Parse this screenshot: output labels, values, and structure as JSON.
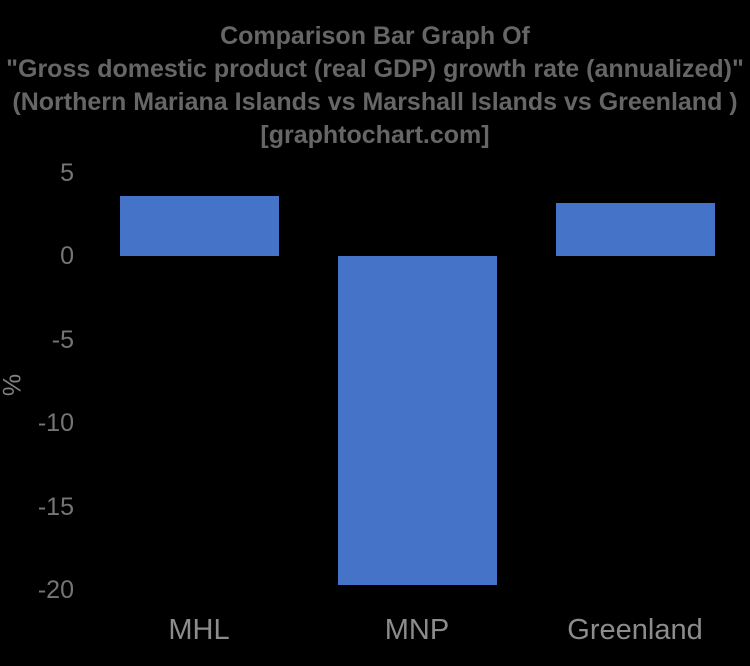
{
  "chart_data": {
    "type": "bar",
    "title_lines": [
      "Comparison Bar Graph Of",
      "\"Gross domestic product (real GDP) growth rate (annualized)\"",
      "(Northern Mariana Islands vs Marshall Islands vs Greenland )",
      "[graphtochart.com]"
    ],
    "categories": [
      "MHL",
      "MNP",
      "Greenland"
    ],
    "values": [
      3.6,
      -19.7,
      3.2
    ],
    "title": "Comparison Bar Graph Of \"Gross domestic product (real GDP) growth rate (annualized)\" (Northern Mariana Islands vs Marshall Islands vs Greenland ) [graphtochart.com]",
    "xlabel": "",
    "ylabel": "%",
    "yticks": [
      5,
      0,
      -5,
      -10,
      -15,
      -20
    ],
    "ylim": [
      -20.1,
      5.9
    ],
    "grid": false,
    "legend_position": "none",
    "colors": {
      "bar": "#4573c8",
      "background": "#000000",
      "title_text": "#666666",
      "tick_text": "#757575",
      "axis_title_text": "#828282",
      "category_text": "#8c8c8c"
    }
  }
}
